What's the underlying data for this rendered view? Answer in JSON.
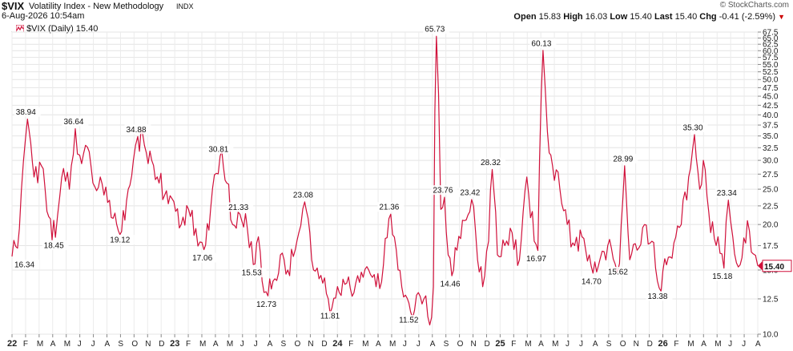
{
  "header": {
    "symbol": "$VIX",
    "name": "Volatility Index - New Methodology",
    "exchange": "INDX",
    "date": "6-Aug-2026 10:54am",
    "copyright": "© StockCharts.com",
    "open_label": "Open",
    "open": "15.83",
    "high_label": "High",
    "high": "16.03",
    "low_label": "Low",
    "low": "15.40",
    "last_label": "Last",
    "last": "15.40",
    "chg_label": "Chg",
    "chg": "-0.41 (-2.59%)",
    "chg_icon": "down-triangle-icon"
  },
  "legend": {
    "label": "$VIX (Daily) 15.40",
    "icon": "line-swatch-icon",
    "color": "#d0103a"
  },
  "chart_data": {
    "type": "line",
    "series": [
      {
        "name": "$VIX (Daily)",
        "color": "#d0103a",
        "points": [
          [
            0,
            16.34
          ],
          [
            1,
            19.5
          ],
          [
            2.1,
            38.94
          ],
          [
            3,
            27
          ],
          [
            4,
            29
          ],
          [
            5,
            21
          ],
          [
            5.9,
            18.45
          ],
          [
            6.5,
            24
          ],
          [
            7,
            28.5
          ],
          [
            7.8,
            25
          ],
          [
            8.6,
            36.64
          ],
          [
            9.2,
            31
          ],
          [
            10,
            33
          ],
          [
            11,
            26
          ],
          [
            12,
            27
          ],
          [
            13,
            23
          ],
          [
            14,
            21.5
          ],
          [
            14.9,
            19.12
          ],
          [
            15.8,
            25
          ],
          [
            16.5,
            30
          ],
          [
            17.1,
            34.88
          ],
          [
            18,
            33
          ],
          [
            19,
            30
          ],
          [
            20,
            26
          ],
          [
            21.5,
            24
          ],
          [
            23,
            20
          ],
          [
            24,
            22
          ],
          [
            25,
            19.5
          ],
          [
            26.1,
            17.06
          ],
          [
            27,
            22
          ],
          [
            28.3,
            30.81
          ],
          [
            29.2,
            26
          ],
          [
            30,
            20
          ],
          [
            31,
            21.33
          ],
          [
            32,
            19.5
          ],
          [
            32.8,
            15.53
          ],
          [
            33.5,
            18.5
          ],
          [
            34,
            14
          ],
          [
            34.8,
            12.73
          ],
          [
            35.5,
            14
          ],
          [
            36.5,
            16.5
          ],
          [
            37.5,
            15
          ],
          [
            38.5,
            17
          ],
          [
            39,
            19
          ],
          [
            39.8,
            23.08
          ],
          [
            40.5,
            19
          ],
          [
            41,
            15
          ],
          [
            42,
            14.5
          ],
          [
            43,
            12.5
          ],
          [
            43.5,
            11.81
          ],
          [
            44.5,
            13
          ],
          [
            45.5,
            13.8
          ],
          [
            46.5,
            13
          ],
          [
            47.5,
            14.8
          ],
          [
            48.5,
            15
          ],
          [
            49.5,
            13.5
          ],
          [
            50.5,
            15.5
          ],
          [
            51.5,
            21.36
          ],
          [
            52.5,
            15
          ],
          [
            53.5,
            12.8
          ],
          [
            54.2,
            11.52
          ],
          [
            55,
            12.8
          ],
          [
            56,
            12.5
          ],
          [
            56.8,
            10.6
          ],
          [
            57.3,
            13.5
          ],
          [
            57.7,
            65.73
          ],
          [
            58.3,
            22
          ],
          [
            58.8,
            23.76
          ],
          [
            59.3,
            16.5
          ],
          [
            59.8,
            14.46
          ],
          [
            60.5,
            17
          ],
          [
            61.5,
            20.5
          ],
          [
            62.5,
            23.42
          ],
          [
            63.3,
            16
          ],
          [
            64,
            13.5
          ],
          [
            64.8,
            18
          ],
          [
            65.3,
            28.32
          ],
          [
            66,
            16.5
          ],
          [
            67,
            17.5
          ],
          [
            68,
            19
          ],
          [
            69,
            16
          ],
          [
            70,
            27
          ],
          [
            71,
            18
          ],
          [
            71.5,
            16.97
          ],
          [
            72.2,
            60.13
          ],
          [
            72.8,
            36
          ],
          [
            73.5,
            29
          ],
          [
            74.5,
            25
          ],
          [
            75.5,
            20
          ],
          [
            76.5,
            17.5
          ],
          [
            77.5,
            18.5
          ],
          [
            78.5,
            16.5
          ],
          [
            79,
            14.7
          ],
          [
            80,
            16.2
          ],
          [
            81,
            17.5
          ],
          [
            82,
            15.6
          ],
          [
            82.6,
            15.62
          ],
          [
            83.3,
            28.99
          ],
          [
            84,
            16
          ],
          [
            85,
            17
          ],
          [
            86,
            20
          ],
          [
            87,
            18
          ],
          [
            88,
            13.38
          ],
          [
            89,
            15.5
          ],
          [
            90,
            17.8
          ],
          [
            91,
            20
          ],
          [
            92,
            27
          ],
          [
            92.8,
            35.3
          ],
          [
            93.5,
            25
          ],
          [
            94,
            30
          ],
          [
            94.5,
            24
          ],
          [
            95,
            19
          ],
          [
            96,
            18.5
          ],
          [
            96.8,
            15.18
          ],
          [
            97.4,
            23.34
          ],
          [
            98,
            18.5
          ],
          [
            99,
            15.5
          ],
          [
            100,
            20.5
          ],
          [
            100.8,
            16.6
          ],
          [
            101.4,
            15.4
          ]
        ]
      }
    ],
    "annotations": [
      {
        "x": 0,
        "y": 16.34,
        "label": "16.34",
        "pos": "below"
      },
      {
        "x": 2.1,
        "y": 38.94,
        "label": "38.94",
        "pos": "above"
      },
      {
        "x": 5.9,
        "y": 18.45,
        "label": "18.45",
        "pos": "below"
      },
      {
        "x": 8.6,
        "y": 36.64,
        "label": "36.64",
        "pos": "above"
      },
      {
        "x": 14.9,
        "y": 19.12,
        "label": "19.12",
        "pos": "below"
      },
      {
        "x": 17.1,
        "y": 34.88,
        "label": "34.88",
        "pos": "above"
      },
      {
        "x": 26.1,
        "y": 17.06,
        "label": "17.06",
        "pos": "below"
      },
      {
        "x": 28.3,
        "y": 30.81,
        "label": "30.81",
        "pos": "above"
      },
      {
        "x": 31,
        "y": 21.33,
        "label": "21.33",
        "pos": "above"
      },
      {
        "x": 32.8,
        "y": 15.53,
        "label": "15.53",
        "pos": "below"
      },
      {
        "x": 34.8,
        "y": 12.73,
        "label": "12.73",
        "pos": "below"
      },
      {
        "x": 39.8,
        "y": 23.08,
        "label": "23.08",
        "pos": "above"
      },
      {
        "x": 43.5,
        "y": 11.81,
        "label": "11.81",
        "pos": "below"
      },
      {
        "x": 51.5,
        "y": 21.36,
        "label": "21.36",
        "pos": "above"
      },
      {
        "x": 54.2,
        "y": 11.52,
        "label": "11.52",
        "pos": "below"
      },
      {
        "x": 57.7,
        "y": 65.73,
        "label": "65.73",
        "pos": "above"
      },
      {
        "x": 58.8,
        "y": 23.76,
        "label": "23.76",
        "pos": "above"
      },
      {
        "x": 59.8,
        "y": 14.46,
        "label": "14.46",
        "pos": "below"
      },
      {
        "x": 62.5,
        "y": 23.42,
        "label": "23.42",
        "pos": "above"
      },
      {
        "x": 65.3,
        "y": 28.32,
        "label": "28.32",
        "pos": "above"
      },
      {
        "x": 71.5,
        "y": 16.97,
        "label": "16.97",
        "pos": "below"
      },
      {
        "x": 72.2,
        "y": 60.13,
        "label": "60.13",
        "pos": "above"
      },
      {
        "x": 79,
        "y": 14.7,
        "label": "14.70",
        "pos": "below"
      },
      {
        "x": 82.6,
        "y": 15.62,
        "label": "15.62",
        "pos": "below"
      },
      {
        "x": 83.3,
        "y": 28.99,
        "label": "28.99",
        "pos": "above"
      },
      {
        "x": 88,
        "y": 13.38,
        "label": "13.38",
        "pos": "below"
      },
      {
        "x": 92.8,
        "y": 35.3,
        "label": "35.30",
        "pos": "above"
      },
      {
        "x": 96.8,
        "y": 15.18,
        "label": "15.18",
        "pos": "below"
      },
      {
        "x": 97.4,
        "y": 23.34,
        "label": "23.34",
        "pos": "above"
      }
    ],
    "y_axis": {
      "scale": "log",
      "range": [
        10,
        67.5
      ],
      "ticks": [
        "10.0",
        "12.5",
        "15.0",
        "17.5",
        "20.0",
        "22.5",
        "25.0",
        "27.5",
        "30.0",
        "32.5",
        "35.0",
        "37.5",
        "40.0",
        "42.5",
        "45.0",
        "47.5",
        "50.0",
        "52.5",
        "55.0",
        "57.5",
        "60.0",
        "62.5",
        "65.0",
        "67.5"
      ],
      "position": "right"
    },
    "x_axis": {
      "range": [
        0,
        101.4
      ],
      "ticks": [
        {
          "x": 0,
          "label": "22",
          "bold": true
        },
        {
          "x": 1,
          "label": "F"
        },
        {
          "x": 2,
          "label": "M"
        },
        {
          "x": 3,
          "label": "A"
        },
        {
          "x": 4,
          "label": "M"
        },
        {
          "x": 5,
          "label": "J"
        },
        {
          "x": 6,
          "label": "J"
        },
        {
          "x": 7,
          "label": "A"
        },
        {
          "x": 8,
          "label": "S"
        },
        {
          "x": 9,
          "label": "O"
        },
        {
          "x": 10,
          "label": "N"
        },
        {
          "x": 11,
          "label": "D"
        },
        {
          "x": 12,
          "label": "23",
          "bold": true
        },
        {
          "x": 13,
          "label": "F"
        },
        {
          "x": 14,
          "label": "M"
        },
        {
          "x": 15,
          "label": "A"
        },
        {
          "x": 16,
          "label": "M"
        },
        {
          "x": 17,
          "label": "J"
        },
        {
          "x": 18,
          "label": "J"
        },
        {
          "x": 19,
          "label": "A"
        },
        {
          "x": 20,
          "label": "S"
        },
        {
          "x": 21,
          "label": "O"
        },
        {
          "x": 22,
          "label": "N"
        },
        {
          "x": 23,
          "label": "D"
        },
        {
          "x": 24,
          "label": "24",
          "bold": true
        },
        {
          "x": 25,
          "label": "F"
        },
        {
          "x": 26,
          "label": "M"
        },
        {
          "x": 27,
          "label": "A"
        },
        {
          "x": 28,
          "label": "M"
        },
        {
          "x": 29,
          "label": "J"
        },
        {
          "x": 30,
          "label": "J"
        },
        {
          "x": 31,
          "label": "A"
        },
        {
          "x": 32,
          "label": "S"
        },
        {
          "x": 33,
          "label": "O"
        },
        {
          "x": 34,
          "label": "N"
        },
        {
          "x": 35,
          "label": "D"
        },
        {
          "x": 36,
          "label": "25",
          "bold": true
        },
        {
          "x": 37,
          "label": "F"
        },
        {
          "x": 38,
          "label": "M"
        },
        {
          "x": 39,
          "label": "A"
        },
        {
          "x": 40,
          "label": "M"
        },
        {
          "x": 41,
          "label": "J"
        },
        {
          "x": 42,
          "label": "J"
        },
        {
          "x": 43,
          "label": "A"
        },
        {
          "x": 44,
          "label": "S"
        },
        {
          "x": 45,
          "label": "O"
        },
        {
          "x": 46,
          "label": "N"
        },
        {
          "x": 47,
          "label": "D"
        },
        {
          "x": 48,
          "label": "26",
          "bold": true
        },
        {
          "x": 49,
          "label": "F"
        },
        {
          "x": 50,
          "label": "M"
        },
        {
          "x": 51,
          "label": "A"
        },
        {
          "x": 52,
          "label": "M"
        },
        {
          "x": 53,
          "label": "J"
        },
        {
          "x": 54,
          "label": "J"
        },
        {
          "x": 55,
          "label": "A"
        }
      ],
      "tick_unit": "month"
    },
    "last_value": {
      "value": 15.4,
      "label": "15.40"
    },
    "grid": true,
    "legend_position": "top-left"
  }
}
